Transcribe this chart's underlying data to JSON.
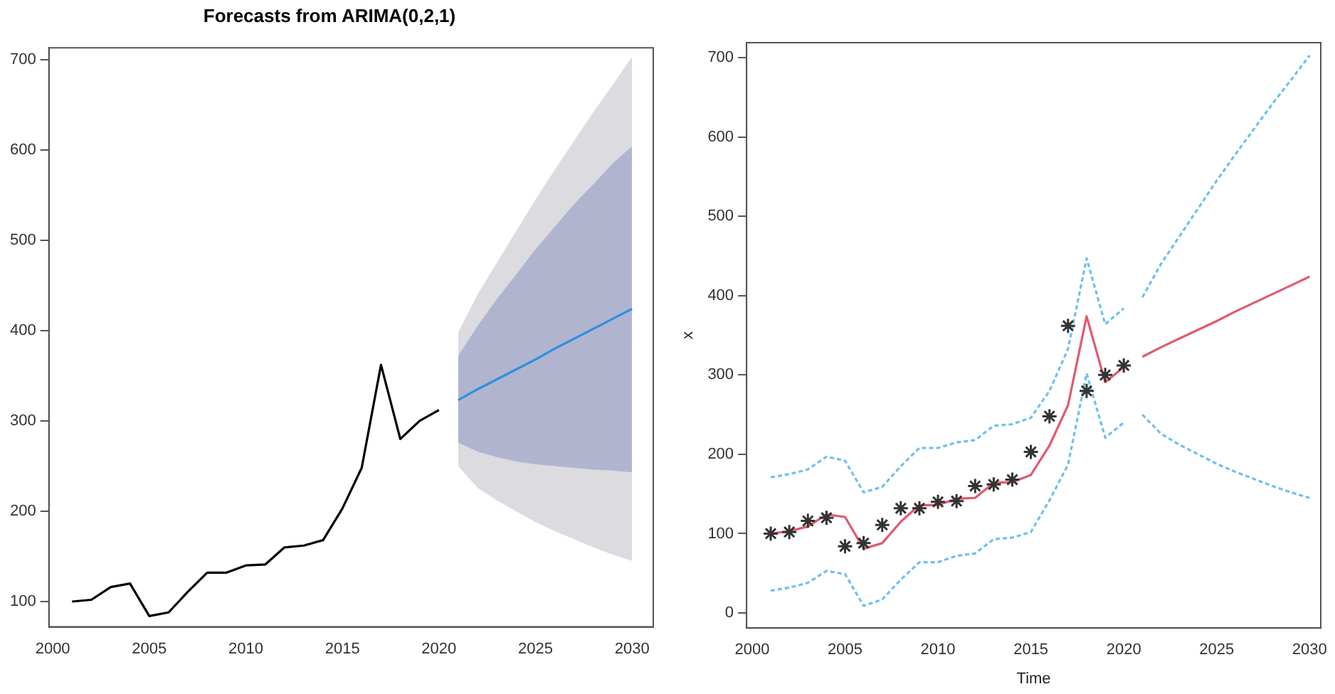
{
  "chart_data": [
    {
      "type": "line",
      "title": "Forecasts from ARIMA(0,2,1)",
      "xlim": [
        1999.8,
        2031.1
      ],
      "xticks": [
        2000,
        2005,
        2010,
        2015,
        2020,
        2025,
        2030
      ],
      "ylim": [
        72,
        713
      ],
      "yticks": [
        100,
        200,
        300,
        400,
        500,
        600,
        700
      ],
      "grid": false,
      "legend": false,
      "series": [
        {
          "type": "area",
          "color": "#dbdbe0",
          "x": [
            2021,
            2022,
            2023,
            2024,
            2025,
            2026,
            2027,
            2028,
            2029,
            2030
          ],
          "lower": [
            250,
            226,
            212,
            200,
            188,
            178,
            169,
            160,
            152,
            145
          ],
          "upper": [
            398,
            440,
            475,
            510,
            545,
            578,
            610,
            642,
            672,
            703
          ],
          "values": [
            null,
            null,
            null,
            null,
            null,
            null,
            null,
            null,
            null,
            null
          ]
        },
        {
          "type": "area",
          "color": "#b0b4cf",
          "x": [
            2021,
            2022,
            2023,
            2024,
            2025,
            2026,
            2027,
            2028,
            2029,
            2030
          ],
          "lower": [
            276,
            266,
            260,
            255,
            252,
            250,
            248,
            246,
            245,
            243
          ],
          "upper": [
            372,
            405,
            435,
            462,
            490,
            515,
            540,
            562,
            585,
            604
          ],
          "values": [
            null,
            null,
            null,
            null,
            null,
            null,
            null,
            null,
            null,
            null
          ]
        },
        {
          "type": "line",
          "color": "#000000",
          "x": [
            2001,
            2002,
            2003,
            2004,
            2005,
            2006,
            2007,
            2008,
            2009,
            2010,
            2011,
            2012,
            2013,
            2014,
            2015,
            2016,
            2017,
            2018,
            2019,
            2020
          ],
          "values": [
            100,
            102,
            116,
            120,
            84,
            88,
            111,
            132,
            132,
            140,
            141,
            160,
            162,
            168,
            203,
            248,
            362,
            280,
            300,
            312
          ]
        },
        {
          "type": "line",
          "color": "#2f8fe0",
          "x": [
            2021,
            2022,
            2023,
            2024,
            2025,
            2026,
            2027,
            2028,
            2029,
            2030
          ],
          "values": [
            323,
            335,
            346,
            357,
            368,
            380,
            391,
            402,
            413,
            424
          ]
        }
      ]
    },
    {
      "type": "line",
      "xlabel": "Time",
      "ylabel": "x",
      "xlim": [
        1999.7,
        2030.6
      ],
      "xticks": [
        2000,
        2005,
        2010,
        2015,
        2020,
        2025,
        2030
      ],
      "ylim": [
        -19,
        719
      ],
      "yticks": [
        0,
        100,
        200,
        300,
        400,
        500,
        600,
        700
      ],
      "grid": false,
      "legend": false,
      "series": [
        {
          "type": "line",
          "color": "#6fc0f0",
          "line_style": "dashed",
          "x": [
            2001,
            2002,
            2003,
            2004,
            2005,
            2006,
            2007,
            2008,
            2009,
            2010,
            2011,
            2012,
            2013,
            2014,
            2015,
            2016,
            2017,
            2018,
            2019,
            2020
          ],
          "values": [
            171,
            175,
            181,
            197,
            192,
            152,
            159,
            185,
            208,
            208,
            215,
            218,
            236,
            238,
            246,
            280,
            333,
            447,
            364,
            384
          ]
        },
        {
          "type": "line",
          "color": "#6fc0f0",
          "line_style": "dashed",
          "x": [
            2001,
            2002,
            2003,
            2004,
            2005,
            2006,
            2007,
            2008,
            2009,
            2010,
            2011,
            2012,
            2013,
            2014,
            2015,
            2016,
            2017,
            2018,
            2019,
            2020
          ],
          "values": [
            28,
            32,
            38,
            53,
            49,
            9,
            17,
            42,
            64,
            64,
            72,
            75,
            93,
            95,
            102,
            142,
            187,
            302,
            221,
            240
          ]
        },
        {
          "type": "line",
          "color": "#6fc0f0",
          "line_style": "dashed",
          "x": [
            2021,
            2022,
            2023,
            2024,
            2025,
            2026,
            2027,
            2028,
            2029,
            2030
          ],
          "values": [
            398,
            440,
            475,
            510,
            545,
            578,
            610,
            642,
            672,
            703
          ]
        },
        {
          "type": "line",
          "color": "#6fc0f0",
          "line_style": "dashed",
          "x": [
            2021,
            2022,
            2023,
            2024,
            2025,
            2026,
            2027,
            2028,
            2029,
            2030
          ],
          "values": [
            250,
            226,
            212,
            200,
            188,
            178,
            169,
            160,
            152,
            145
          ]
        },
        {
          "type": "line",
          "color": "#e05a6e",
          "x": [
            2001,
            2002,
            2003,
            2004,
            2005,
            2006,
            2007,
            2008,
            2009,
            2010,
            2011,
            2012,
            2013,
            2014,
            2015,
            2016,
            2017,
            2018,
            2019,
            2020
          ],
          "values": [
            100,
            103,
            109,
            124,
            121,
            81,
            88,
            115,
            136,
            136,
            144,
            145,
            164,
            165,
            174,
            211,
            262,
            374,
            291,
            310
          ]
        },
        {
          "type": "line",
          "color": "#e05a6e",
          "x": [
            2021,
            2022,
            2023,
            2024,
            2025,
            2026,
            2027,
            2028,
            2029,
            2030
          ],
          "values": [
            323,
            335,
            346,
            357,
            368,
            380,
            391,
            402,
            413,
            424
          ]
        },
        {
          "type": "scatter",
          "color": "#333333",
          "marker": "cross",
          "x": [
            2001,
            2002,
            2003,
            2004,
            2005,
            2006,
            2007,
            2008,
            2009,
            2010,
            2011,
            2012,
            2013,
            2014,
            2015,
            2016,
            2017,
            2018,
            2019,
            2020
          ],
          "values": [
            100,
            102,
            116,
            120,
            84,
            88,
            111,
            132,
            132,
            140,
            141,
            160,
            162,
            168,
            203,
            248,
            362,
            280,
            300,
            312
          ]
        }
      ]
    }
  ]
}
